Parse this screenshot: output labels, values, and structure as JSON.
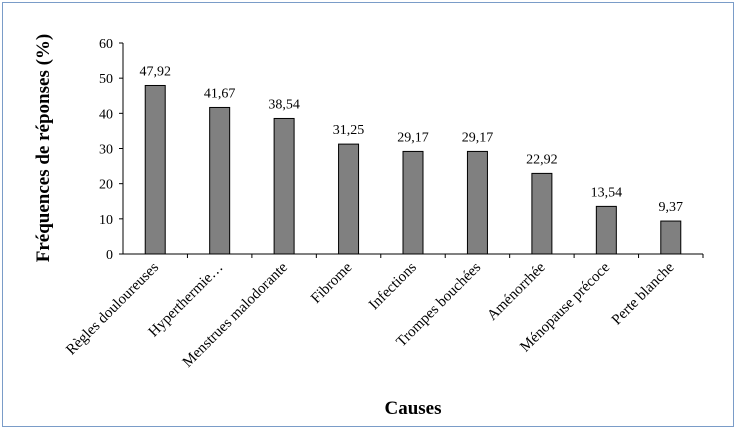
{
  "chart_data": {
    "type": "bar",
    "categories": [
      "Règles douloureuses",
      "Hyperthermie…",
      "Menstrues malodorante",
      "Fibrome",
      "Infections",
      "Trompes bouchées",
      "Aménorrhée",
      "Ménopause précoce",
      "Perte blanche"
    ],
    "values": [
      47.92,
      41.67,
      38.54,
      31.25,
      29.17,
      29.17,
      22.92,
      13.54,
      9.37
    ],
    "data_labels": [
      "47,92",
      "41,67",
      "38,54",
      "31,25",
      "29,17",
      "29,17",
      "22,92",
      "13,54",
      "9,37"
    ],
    "title": "",
    "xlabel": "Causes",
    "ylabel": "Fréquences de réponses (%)",
    "ylim": [
      0,
      60
    ],
    "yticks": [
      0,
      10,
      20,
      30,
      40,
      50,
      60
    ],
    "ytick_labels": [
      "0",
      "10",
      "20",
      "30",
      "40",
      "50",
      "60"
    ],
    "grid": false,
    "bar_color": "#808080",
    "bar_edge_color": "#000000"
  }
}
